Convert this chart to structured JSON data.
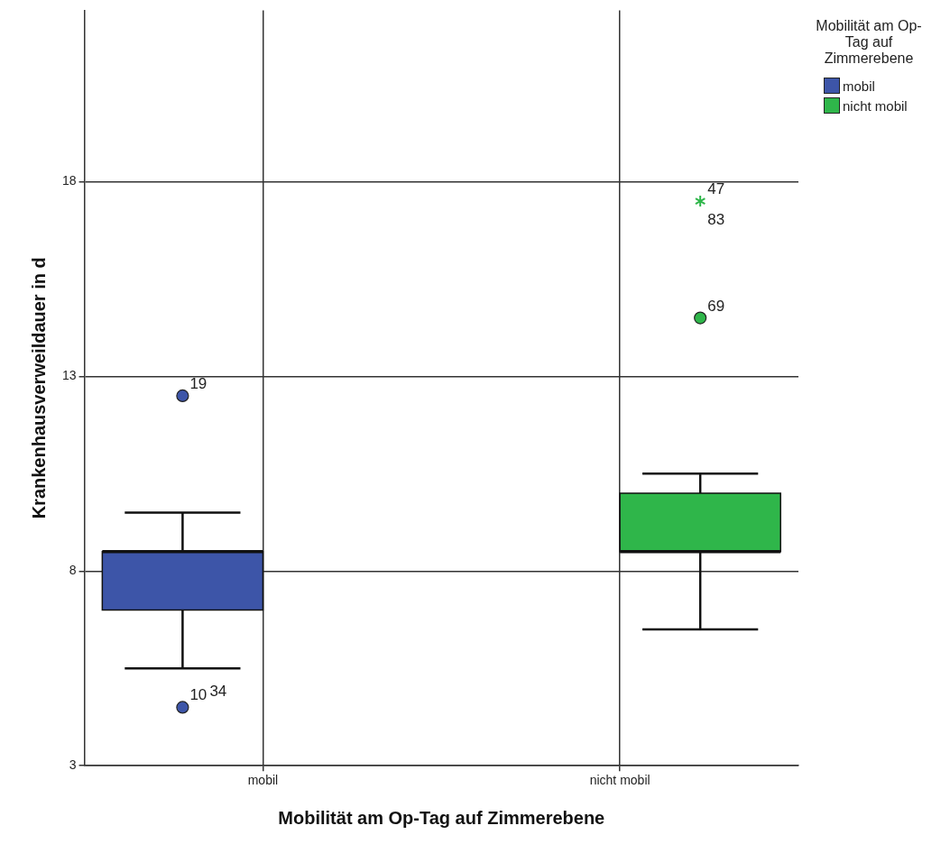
{
  "chart_data": {
    "type": "box",
    "xlabel": "Mobilität am Op-Tag auf Zimmerebene",
    "ylabel": "Krankenhausverweildauer in d",
    "legend_title": "Mobilität am Op-Tag auf Zimmerebene",
    "categories": [
      "mobil",
      "nicht mobil"
    ],
    "series": [
      {
        "name": "mobil",
        "color": "#3d55a8",
        "boxes": [
          {
            "low": 5.5,
            "q1": 7.0,
            "median": 8.5,
            "q3": 8.5,
            "high": 9.5,
            "outliers": [
              12.5,
              4.5
            ]
          },
          null
        ]
      },
      {
        "name": "nicht mobil",
        "color": "#2fb64a",
        "boxes": [
          null,
          {
            "low": 6.5,
            "q1": 8.5,
            "median": 8.5,
            "q3": 10.0,
            "high": 10.5,
            "outliers": [
              17.5,
              14.5
            ]
          }
        ]
      }
    ],
    "ylim": [
      3,
      22.4
    ],
    "yticks": [
      3,
      8,
      13,
      18
    ],
    "grid": true,
    "legend": "top right",
    "annotations": [
      "19",
      "10",
      "34",
      "47",
      "83",
      "69"
    ]
  }
}
